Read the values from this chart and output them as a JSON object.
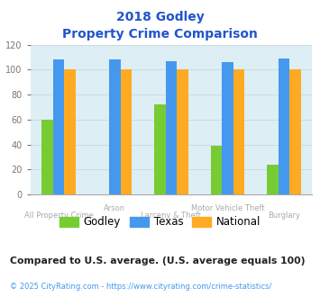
{
  "title_line1": "2018 Godley",
  "title_line2": "Property Crime Comparison",
  "categories": [
    "All Property Crime",
    "Arson",
    "Larceny & Theft",
    "Motor Vehicle Theft",
    "Burglary"
  ],
  "godley": [
    60,
    0,
    72,
    39,
    24
  ],
  "texas": [
    108,
    108,
    107,
    106,
    109
  ],
  "national": [
    100,
    100,
    100,
    100,
    100
  ],
  "godley_color": "#77cc33",
  "texas_color": "#4499ee",
  "national_color": "#ffaa22",
  "ylim": [
    0,
    120
  ],
  "yticks": [
    0,
    20,
    40,
    60,
    80,
    100,
    120
  ],
  "bg_color": "#ddeef5",
  "title_color": "#2255cc",
  "label_color": "#aaaaaa",
  "legend_labels": [
    "Godley",
    "Texas",
    "National"
  ],
  "footnote1": "Compared to U.S. average. (U.S. average equals 100)",
  "footnote2": "© 2025 CityRating.com - https://www.cityrating.com/crime-statistics/",
  "footnote1_color": "#222222",
  "footnote2_color": "#4499ee",
  "bar_width": 0.2,
  "label_row1": [
    "Arson",
    "Motor Vehicle Theft"
  ],
  "label_row1_idx": [
    1,
    3
  ],
  "label_row2": [
    "All Property Crime",
    "Larceny & Theft",
    "Burglary"
  ],
  "label_row2_idx": [
    0,
    2,
    4
  ]
}
